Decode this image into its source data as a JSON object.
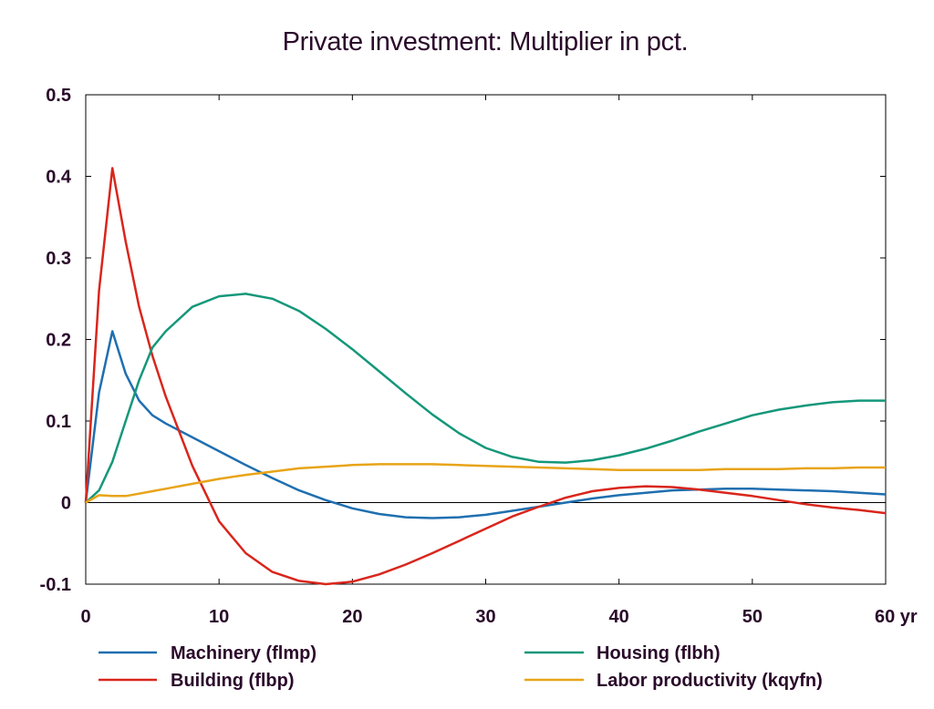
{
  "chart_data": {
    "type": "line",
    "title": "Private investment: Multiplier in pct.",
    "xlabel": "",
    "ylabel": "",
    "x_unit_label": "yr",
    "xlim": [
      0,
      60
    ],
    "ylim": [
      -0.1,
      0.5
    ],
    "x_ticks": [
      0,
      10,
      20,
      30,
      40,
      50,
      60
    ],
    "x_tick_labels": [
      "0",
      "10",
      "20",
      "30",
      "40",
      "50",
      "60 yr"
    ],
    "y_ticks": [
      -0.1,
      0,
      0.1,
      0.2,
      0.3,
      0.4,
      0.5
    ],
    "y_tick_labels": [
      "-0.1",
      "0",
      "0.1",
      "0.2",
      "0.3",
      "0.4",
      "0.5"
    ],
    "grid": false,
    "zero_line": true,
    "legend_position": "bottom",
    "series": [
      {
        "name": "Machinery (flmp)",
        "color": "#1f6fb0",
        "x": [
          0,
          1,
          2,
          3,
          4,
          5,
          6,
          8,
          10,
          12,
          14,
          16,
          18,
          20,
          22,
          24,
          26,
          28,
          30,
          32,
          34,
          36,
          38,
          40,
          42,
          44,
          46,
          48,
          50,
          52,
          54,
          56,
          58,
          60
        ],
        "y": [
          0,
          0.135,
          0.21,
          0.158,
          0.125,
          0.107,
          0.097,
          0.08,
          0.063,
          0.046,
          0.03,
          0.015,
          0.003,
          -0.007,
          -0.014,
          -0.018,
          -0.019,
          -0.018,
          -0.015,
          -0.01,
          -0.005,
          0,
          0.005,
          0.009,
          0.012,
          0.015,
          0.016,
          0.017,
          0.017,
          0.016,
          0.015,
          0.014,
          0.012,
          0.01
        ]
      },
      {
        "name": "Building (flbp)",
        "color": "#d9261c",
        "x": [
          0,
          1,
          2,
          3,
          4,
          5,
          6,
          8,
          10,
          12,
          14,
          16,
          18,
          20,
          22,
          24,
          26,
          28,
          30,
          32,
          34,
          36,
          38,
          40,
          42,
          44,
          46,
          48,
          50,
          52,
          54,
          56,
          58,
          60
        ],
        "y": [
          0,
          0.26,
          0.41,
          0.32,
          0.24,
          0.18,
          0.13,
          0.045,
          -0.023,
          -0.062,
          -0.085,
          -0.096,
          -0.1,
          -0.097,
          -0.088,
          -0.076,
          -0.062,
          -0.047,
          -0.032,
          -0.017,
          -0.005,
          0.006,
          0.014,
          0.018,
          0.02,
          0.019,
          0.016,
          0.012,
          0.008,
          0.003,
          -0.002,
          -0.006,
          -0.009,
          -0.013
        ]
      },
      {
        "name": "Housing (flbh)",
        "color": "#15977a",
        "x": [
          0,
          1,
          2,
          3,
          4,
          5,
          6,
          8,
          10,
          12,
          14,
          16,
          18,
          20,
          22,
          24,
          26,
          28,
          30,
          32,
          34,
          36,
          38,
          40,
          42,
          44,
          46,
          48,
          50,
          52,
          54,
          56,
          58,
          60
        ],
        "y": [
          0,
          0.015,
          0.05,
          0.1,
          0.15,
          0.19,
          0.21,
          0.24,
          0.253,
          0.256,
          0.25,
          0.235,
          0.213,
          0.188,
          0.161,
          0.134,
          0.108,
          0.085,
          0.067,
          0.056,
          0.05,
          0.049,
          0.052,
          0.058,
          0.066,
          0.076,
          0.087,
          0.097,
          0.107,
          0.114,
          0.119,
          0.123,
          0.125,
          0.125
        ]
      },
      {
        "name": "Labor productivity (kqyfn)",
        "color": "#e8a418",
        "x": [
          0,
          1,
          2,
          3,
          4,
          5,
          6,
          8,
          10,
          12,
          14,
          16,
          18,
          20,
          22,
          24,
          26,
          28,
          30,
          32,
          34,
          36,
          38,
          40,
          42,
          44,
          46,
          48,
          50,
          52,
          54,
          56,
          58,
          60
        ],
        "y": [
          0,
          0.009,
          0.008,
          0.008,
          0.011,
          0.014,
          0.017,
          0.023,
          0.029,
          0.034,
          0.038,
          0.042,
          0.044,
          0.046,
          0.047,
          0.047,
          0.047,
          0.046,
          0.045,
          0.044,
          0.043,
          0.042,
          0.041,
          0.04,
          0.04,
          0.04,
          0.04,
          0.041,
          0.041,
          0.041,
          0.042,
          0.042,
          0.043,
          0.043
        ]
      }
    ]
  }
}
